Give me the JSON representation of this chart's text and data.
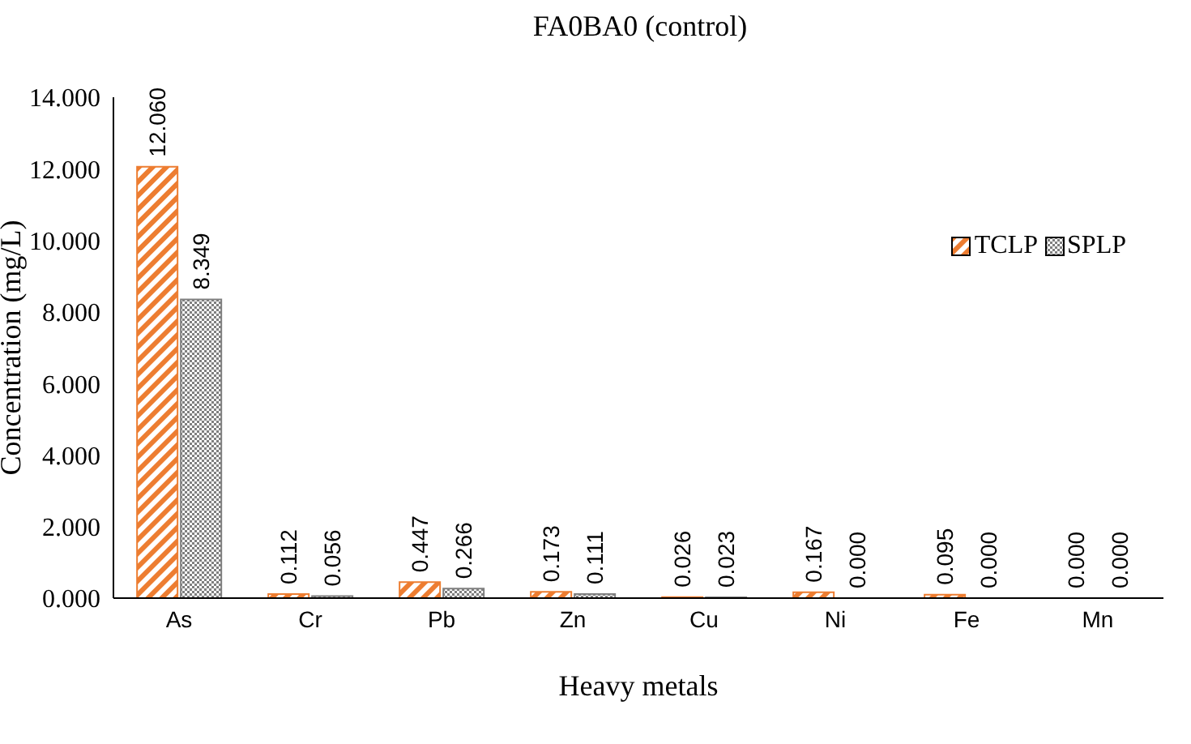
{
  "chart_data": {
    "type": "bar",
    "title": "FA0BA0 (control)",
    "xlabel": "Heavy metals",
    "ylabel": "Concentration (mg/L)",
    "categories": [
      "As",
      "Cr",
      "Pb",
      "Zn",
      "Cu",
      "Ni",
      "Fe",
      "Mn"
    ],
    "series": [
      {
        "name": "TCLP",
        "color": "#ed7d31",
        "values": [
          12.06,
          0.112,
          0.447,
          0.173,
          0.026,
          0.167,
          0.095,
          0
        ],
        "value_labels": [
          "12.060",
          "0.112",
          "0.447",
          "0.173",
          "0.026",
          "0.167",
          "0.095",
          "0.000"
        ]
      },
      {
        "name": "SPLP",
        "color": "#7f7f7f",
        "values": [
          8.349,
          0.056,
          0.266,
          0.111,
          0.023,
          0,
          0,
          0
        ],
        "value_labels": [
          "8.349",
          "0.056",
          "0.266",
          "0.111",
          "0.023",
          "0.000",
          "0.000",
          "0.000"
        ]
      }
    ],
    "ylim": [
      0,
      14
    ],
    "yticks": [
      {
        "value": 0,
        "label": "0.000"
      },
      {
        "value": 2,
        "label": "2.000"
      },
      {
        "value": 4,
        "label": "4.000"
      },
      {
        "value": 6,
        "label": "6.000"
      },
      {
        "value": 8,
        "label": "8.000"
      },
      {
        "value": 10,
        "label": "10.000"
      },
      {
        "value": 12,
        "label": "12.000"
      },
      {
        "value": 14,
        "label": "14.000"
      }
    ],
    "grid": false,
    "legend": "top right"
  }
}
